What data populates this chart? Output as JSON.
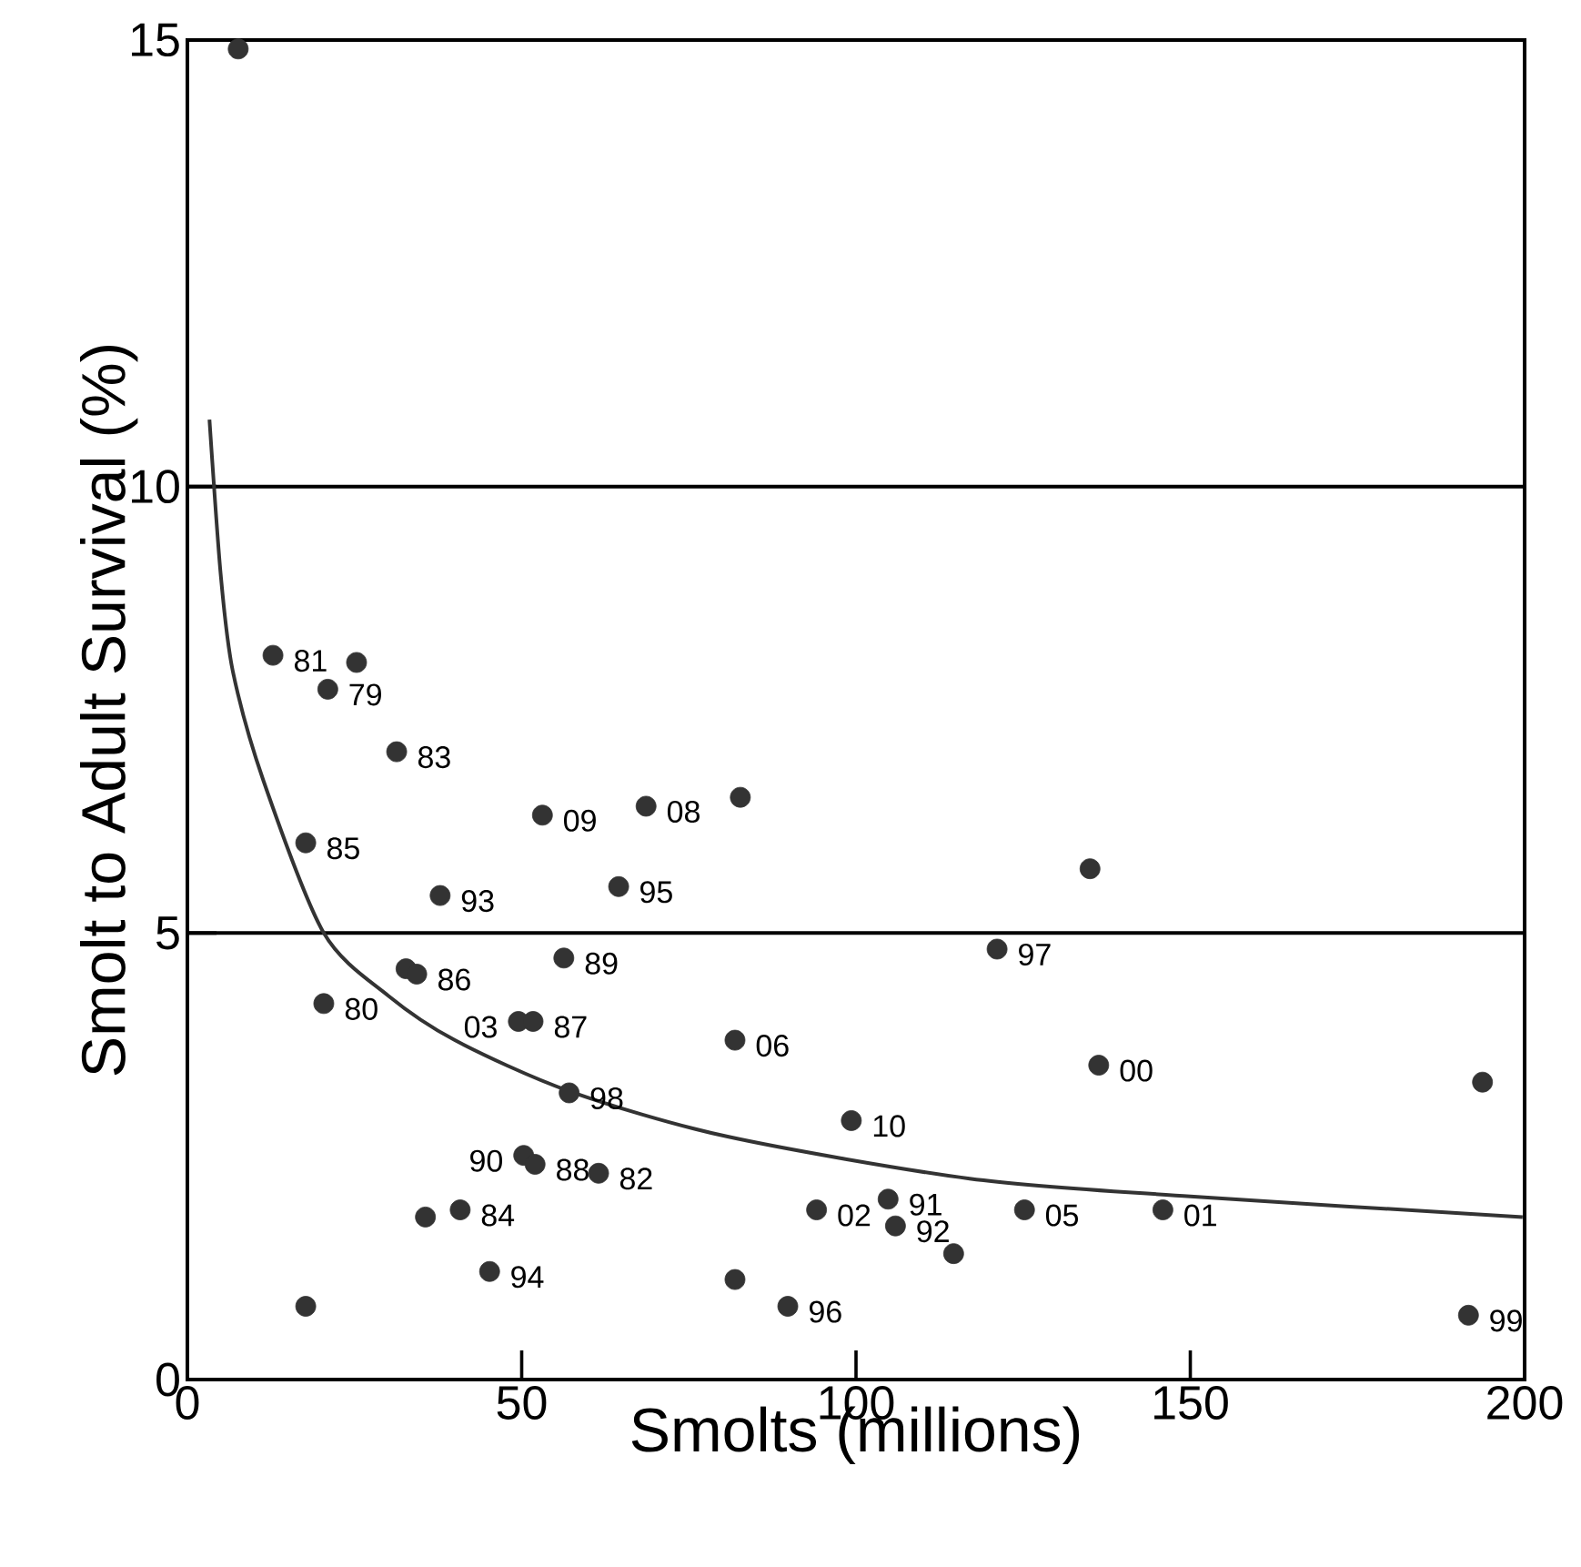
{
  "chart_data": {
    "type": "scatter",
    "xlabel": "Smolts (millions)",
    "ylabel": "Smolt to Adult Survival (%)",
    "xlim": [
      0,
      200
    ],
    "ylim": [
      0,
      15
    ],
    "xticks": [
      0,
      50,
      100,
      150,
      200
    ],
    "yticks": [
      0,
      5,
      10,
      15
    ],
    "grid": "y",
    "series": [
      {
        "marker": "circle",
        "color": "#333333",
        "x": [
          7.6,
          12.8,
          25.3,
          21.0,
          31.3,
          53.1,
          68.6,
          82.7,
          17.7,
          37.8,
          64.5,
          135.0,
          32.7,
          34.3,
          56.3,
          20.4,
          49.5,
          51.7,
          81.9,
          121.1,
          136.3,
          193.7,
          57.1,
          99.3,
          50.3,
          52.0,
          61.5,
          35.6,
          40.8,
          45.2,
          17.7,
          81.9,
          89.8,
          94.1,
          104.8,
          105.9,
          114.6,
          125.2,
          145.9,
          191.6
        ],
        "values": [
          14.9,
          8.11,
          8.03,
          7.73,
          7.03,
          6.32,
          6.42,
          6.52,
          6.01,
          5.42,
          5.52,
          5.72,
          4.6,
          4.54,
          4.72,
          4.21,
          4.01,
          4.01,
          3.8,
          4.82,
          3.52,
          3.33,
          3.21,
          2.9,
          2.51,
          2.41,
          2.31,
          1.82,
          1.9,
          1.21,
          0.82,
          1.12,
          0.82,
          1.9,
          2.02,
          1.72,
          1.41,
          1.9,
          1.9,
          0.72
        ]
      },
      {
        "type": "line",
        "marker": "none",
        "color": "#333333",
        "line_style": "solid",
        "x": [
          3.3,
          5,
          6.8,
          11.4,
          20.4,
          30,
          40,
          57.1,
          80.8,
          117,
          150,
          199.7
        ],
        "values": [
          10.75,
          9.0,
          7.93,
          6.7,
          5.0,
          4.3,
          3.8,
          3.23,
          2.72,
          2.25,
          2.05,
          1.82
        ]
      }
    ],
    "annotations": [
      {
        "text": "81",
        "x": 12.8,
        "y": 8.11
      },
      {
        "text": "79",
        "x": 21.0,
        "y": 7.73
      },
      {
        "text": "83",
        "x": 31.3,
        "y": 7.03
      },
      {
        "text": "09",
        "x": 53.1,
        "y": 6.32
      },
      {
        "text": "08",
        "x": 68.6,
        "y": 6.42
      },
      {
        "text": "85",
        "x": 17.7,
        "y": 6.01
      },
      {
        "text": "93",
        "x": 37.8,
        "y": 5.42
      },
      {
        "text": "95",
        "x": 64.5,
        "y": 5.52
      },
      {
        "text": "86",
        "x": 34.3,
        "y": 4.54
      },
      {
        "text": "89",
        "x": 56.3,
        "y": 4.72
      },
      {
        "text": "80",
        "x": 20.4,
        "y": 4.21
      },
      {
        "text": "03",
        "x": 49.5,
        "y": 4.01
      },
      {
        "text": "87",
        "x": 51.7,
        "y": 4.01
      },
      {
        "text": "06",
        "x": 81.9,
        "y": 3.8
      },
      {
        "text": "97",
        "x": 121.1,
        "y": 4.82
      },
      {
        "text": "00",
        "x": 136.3,
        "y": 3.52
      },
      {
        "text": "98",
        "x": 57.1,
        "y": 3.21
      },
      {
        "text": "10",
        "x": 99.3,
        "y": 2.9
      },
      {
        "text": "90",
        "x": 50.3,
        "y": 2.51
      },
      {
        "text": "88",
        "x": 52.0,
        "y": 2.41
      },
      {
        "text": "82",
        "x": 61.5,
        "y": 2.31
      },
      {
        "text": "84",
        "x": 40.8,
        "y": 1.9
      },
      {
        "text": "94",
        "x": 45.2,
        "y": 1.21
      },
      {
        "text": "96",
        "x": 89.8,
        "y": 0.82
      },
      {
        "text": "02",
        "x": 94.1,
        "y": 1.9
      },
      {
        "text": "91",
        "x": 104.8,
        "y": 2.02
      },
      {
        "text": "92",
        "x": 105.9,
        "y": 1.72
      },
      {
        "text": "05",
        "x": 125.2,
        "y": 1.9
      },
      {
        "text": "01",
        "x": 145.9,
        "y": 1.9
      },
      {
        "text": "99",
        "x": 191.6,
        "y": 0.72
      }
    ]
  }
}
